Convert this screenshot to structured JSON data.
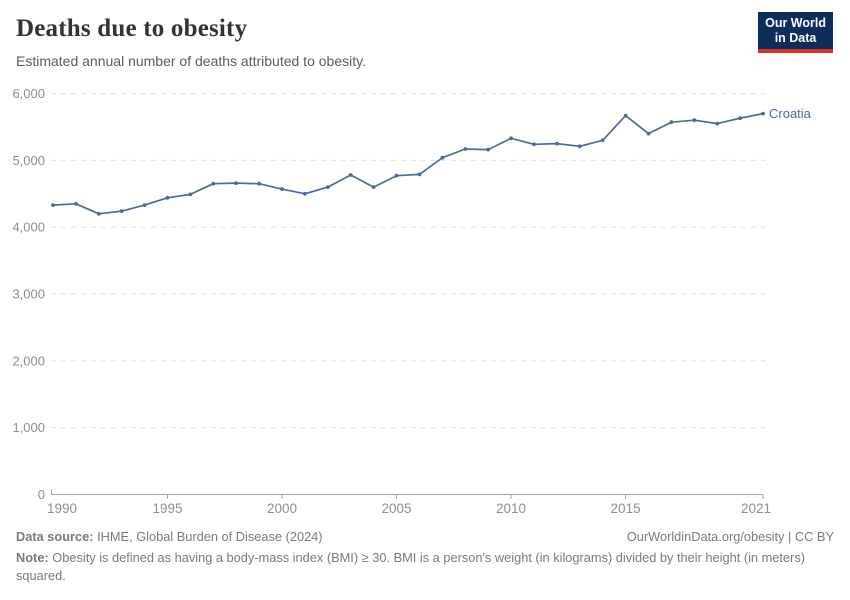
{
  "header": {
    "title": "Deaths due to obesity",
    "subtitle": "Estimated annual number of deaths attributed to obesity.",
    "logo": {
      "line1": "Our World",
      "line2": "in Data"
    }
  },
  "chart_data": {
    "type": "line",
    "title": "Deaths due to obesity",
    "subtitle": "Estimated annual number of deaths attributed to obesity.",
    "xlabel": "",
    "ylabel": "",
    "xlim": [
      1990,
      2021
    ],
    "ylim": [
      0,
      6000
    ],
    "x_ticks": [
      1990,
      1995,
      2000,
      2005,
      2010,
      2015,
      2021
    ],
    "y_ticks": [
      0,
      1000,
      2000,
      3000,
      4000,
      5000,
      6000
    ],
    "grid": "horizontal-dashed",
    "legend_position": "end-of-line-label",
    "series": [
      {
        "name": "Croatia",
        "color": "#4C6A9C",
        "x": [
          1990,
          1991,
          1992,
          1993,
          1994,
          1995,
          1996,
          1997,
          1998,
          1999,
          2000,
          2001,
          2002,
          2003,
          2004,
          2005,
          2006,
          2007,
          2008,
          2009,
          2010,
          2011,
          2012,
          2013,
          2014,
          2015,
          2016,
          2017,
          2018,
          2019,
          2020,
          2021
        ],
        "values": [
          4330,
          4350,
          4200,
          4240,
          4330,
          4440,
          4490,
          4650,
          4660,
          4650,
          4570,
          4500,
          4600,
          4780,
          4600,
          4770,
          4790,
          5040,
          5170,
          5160,
          5330,
          5240,
          5250,
          5210,
          5300,
          5670,
          5400,
          5570,
          5600,
          5550,
          5630,
          5700
        ]
      }
    ]
  },
  "footer": {
    "source_label": "Data source:",
    "source_text": " IHME, Global Burden of Disease (2024)",
    "link": "OurWorldinData.org/obesity | CC BY",
    "note_label": "Note:",
    "note_text": " Obesity is defined as having a body-mass index (BMI) ≥ 30. BMI is a person's weight (in kilograms) divided by their height (in meters) squared."
  },
  "colors": {
    "line": "#4C6A9C",
    "entity_label": "#4C6A9C",
    "grid": "#e0e0e0",
    "axis": "#a3a3a3",
    "tick_text": "#8e8e8e",
    "logo_bg": "#0d2e5a",
    "logo_stripe": "#d7332a"
  }
}
